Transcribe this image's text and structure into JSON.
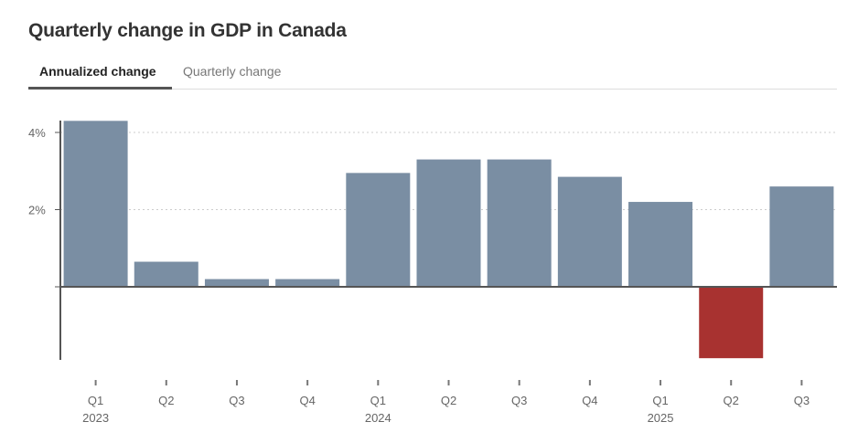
{
  "title": "Quarterly change in GDP in Canada",
  "tabs": [
    {
      "label": "Annualized change",
      "active": true
    },
    {
      "label": "Quarterly change",
      "active": false
    }
  ],
  "colors": {
    "positive": "#7a8ea3",
    "negative": "#a83230",
    "axis": "#555555",
    "grid": "#cccccc"
  },
  "chart_data": {
    "type": "bar",
    "categories": [
      "Q1",
      "Q2",
      "Q3",
      "Q4",
      "Q1",
      "Q2",
      "Q3",
      "Q4",
      "Q1",
      "Q2",
      "Q3"
    ],
    "year_labels": [
      "2023",
      "",
      "",
      "",
      "2024",
      "",
      "",
      "",
      "2025",
      "",
      ""
    ],
    "values": [
      4.3,
      0.65,
      0.2,
      0.2,
      2.95,
      3.3,
      3.3,
      2.85,
      2.2,
      -1.85,
      2.6
    ],
    "ylim": [
      -1.9,
      4.3
    ],
    "yticks": [
      {
        "value": 4,
        "label": "4%"
      },
      {
        "value": 2,
        "label": "2%"
      },
      {
        "value": 0,
        "label": ""
      }
    ],
    "grid": true,
    "xlabel": "",
    "ylabel": ""
  }
}
